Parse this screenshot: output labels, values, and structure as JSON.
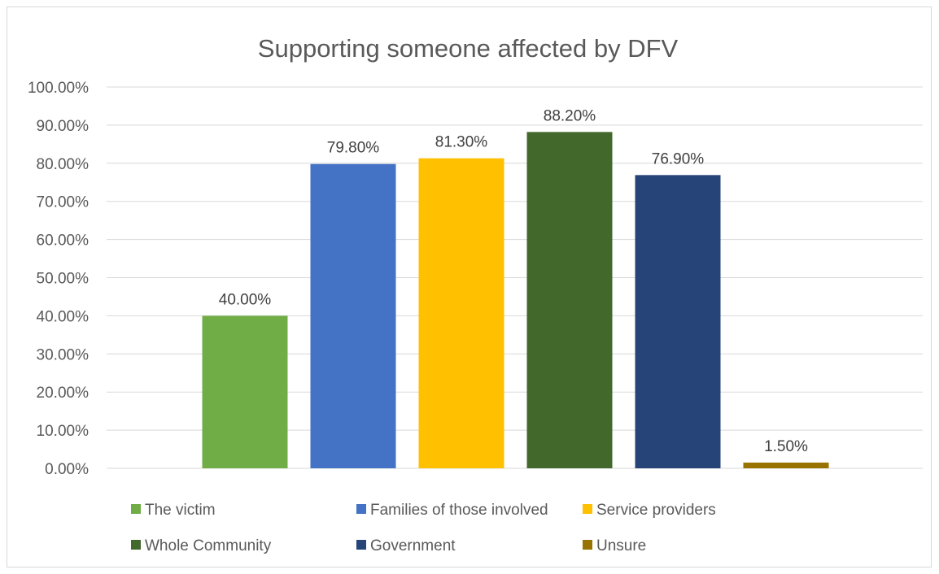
{
  "chart_data": {
    "type": "bar",
    "title": "Supporting someone affected by DFV",
    "xlabel": "",
    "ylabel": "",
    "ylim": [
      0,
      100
    ],
    "y_ticks": [
      "0.00%",
      "10.00%",
      "20.00%",
      "30.00%",
      "40.00%",
      "50.00%",
      "60.00%",
      "70.00%",
      "80.00%",
      "90.00%",
      "100.00%"
    ],
    "grid": true,
    "legend_position": "bottom",
    "series": [
      {
        "name": "The victim",
        "value": 40.0,
        "label": "40.00%",
        "color": "#70ad47"
      },
      {
        "name": "Families of those involved",
        "value": 79.8,
        "label": "79.80%",
        "color": "#4472c4"
      },
      {
        "name": "Service providers",
        "value": 81.3,
        "label": "81.30%",
        "color": "#ffc000"
      },
      {
        "name": "Whole Community",
        "value": 88.2,
        "label": "88.20%",
        "color": "#43682b"
      },
      {
        "name": "Government",
        "value": 76.9,
        "label": "76.90%",
        "color": "#264478"
      },
      {
        "name": "Unsure",
        "value": 1.5,
        "label": "1.50%",
        "color": "#997300"
      }
    ]
  }
}
